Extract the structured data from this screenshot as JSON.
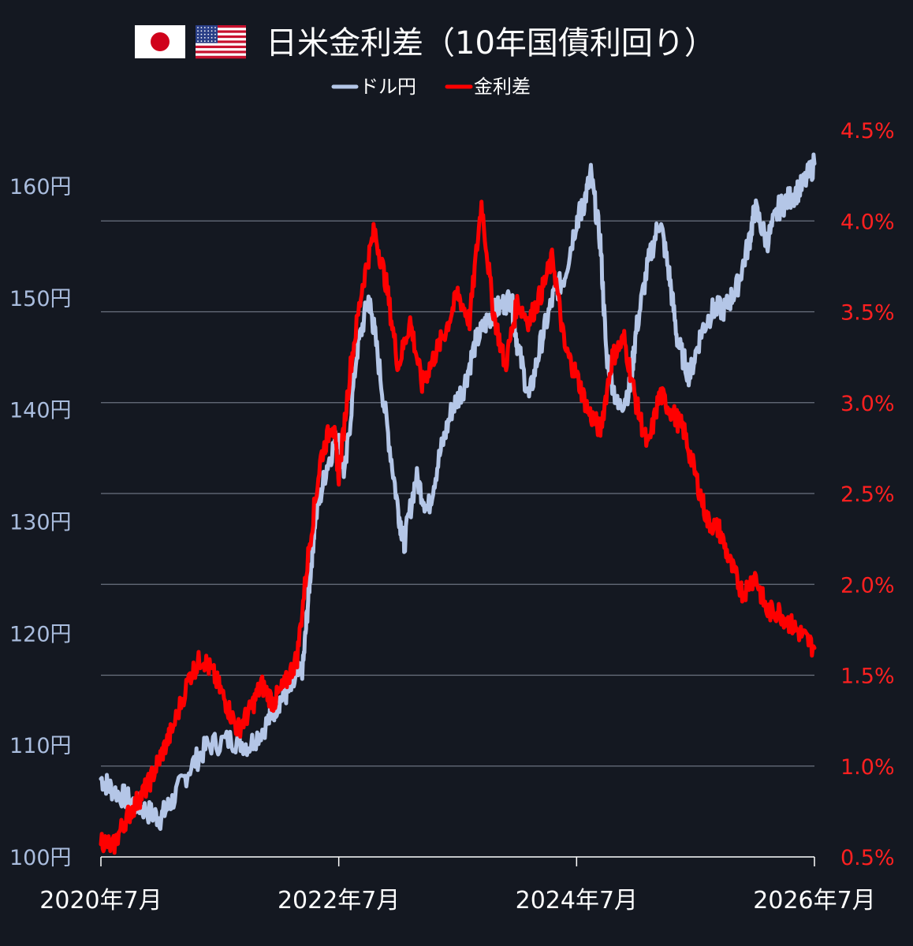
{
  "chart_data": {
    "type": "line",
    "title": "日米金利差（10年国債利回り）",
    "flags": [
      "japan-flag-icon",
      "usa-flag-icon"
    ],
    "legend_position": "top-center",
    "x_ticks": [
      "2020年7月",
      "2022年7月",
      "2024年7月",
      "2026年7月"
    ],
    "x_range": [
      "2020-07",
      "2026-07"
    ],
    "y_left": {
      "ticks": [
        "100円",
        "110円",
        "120円",
        "130円",
        "140円",
        "150円",
        "160円"
      ],
      "range": [
        100,
        165
      ],
      "color": "#a9bcdd"
    },
    "y_right": {
      "ticks": [
        "0.5%",
        "1.0%",
        "1.5%",
        "2.0%",
        "2.5%",
        "3.0%",
        "3.5%",
        "4.0%",
        "4.5%"
      ],
      "range": [
        0.5,
        4.5
      ],
      "color": "#ff0000"
    },
    "grid": true,
    "series": [
      {
        "name": "ドル円",
        "axis": "left",
        "color": "#b4c6e7",
        "x": [
          2020.5,
          2020.6,
          2020.75,
          2020.9,
          2021.0,
          2021.1,
          2021.25,
          2021.4,
          2021.6,
          2021.75,
          2021.9,
          2022.0,
          2022.1,
          2022.2,
          2022.25,
          2022.3,
          2022.4,
          2022.5,
          2022.55,
          2022.65,
          2022.75,
          2022.8,
          2022.9,
          2023.0,
          2023.05,
          2023.15,
          2023.25,
          2023.35,
          2023.45,
          2023.55,
          2023.65,
          2023.75,
          2023.83,
          2023.95,
          2024.0,
          2024.1,
          2024.2,
          2024.3,
          2024.4,
          2024.5,
          2024.55,
          2024.62,
          2024.7,
          2024.75,
          2024.85,
          2024.95,
          2025.0,
          2025.1,
          2025.2,
          2025.28,
          2025.35,
          2025.45,
          2025.55,
          2025.65,
          2025.75,
          2025.85,
          2025.95,
          2026.0,
          2026.1,
          2026.2,
          2026.3,
          2026.4,
          2026.5
        ],
        "y": [
          107,
          106,
          105,
          104,
          103.5,
          105,
          108,
          110,
          110.5,
          110,
          112,
          114,
          115,
          117,
          124,
          130,
          135,
          138,
          134,
          145,
          150,
          147,
          139,
          131,
          128,
          134,
          131,
          136,
          140,
          142,
          146,
          148,
          149,
          150,
          146,
          141,
          146,
          150,
          152,
          157,
          158,
          161,
          155,
          145,
          140,
          142,
          147,
          153,
          157,
          152,
          146,
          143,
          147,
          149,
          149,
          151,
          155,
          158,
          155,
          158,
          159,
          160,
          162
        ]
      },
      {
        "name": "金利差",
        "axis": "right",
        "color": "#ff0000",
        "x": [
          2020.5,
          2020.6,
          2020.7,
          2020.8,
          2020.9,
          2021.0,
          2021.1,
          2021.25,
          2021.35,
          2021.45,
          2021.55,
          2021.65,
          2021.75,
          2021.85,
          2021.95,
          2022.05,
          2022.15,
          2022.25,
          2022.35,
          2022.45,
          2022.5,
          2022.6,
          2022.7,
          2022.8,
          2022.9,
          2023.0,
          2023.1,
          2023.2,
          2023.3,
          2023.4,
          2023.5,
          2023.6,
          2023.7,
          2023.8,
          2023.9,
          2024.0,
          2024.1,
          2024.2,
          2024.3,
          2024.4,
          2024.5,
          2024.6,
          2024.7,
          2024.8,
          2024.9,
          2025.0,
          2025.1,
          2025.2,
          2025.3,
          2025.4,
          2025.5,
          2025.6,
          2025.7,
          2025.8,
          2025.9,
          2026.0,
          2026.1,
          2026.2,
          2026.3,
          2026.4,
          2026.5
        ],
        "y": [
          0.6,
          0.55,
          0.7,
          0.8,
          0.9,
          1.05,
          1.2,
          1.5,
          1.6,
          1.5,
          1.35,
          1.2,
          1.3,
          1.45,
          1.35,
          1.45,
          1.6,
          2.2,
          2.7,
          2.9,
          2.6,
          3.2,
          3.65,
          3.95,
          3.65,
          3.2,
          3.45,
          3.1,
          3.25,
          3.4,
          3.6,
          3.45,
          4.1,
          3.5,
          3.2,
          3.55,
          3.45,
          3.6,
          3.8,
          3.3,
          3.15,
          2.95,
          2.85,
          3.25,
          3.35,
          3.0,
          2.75,
          3.05,
          2.95,
          2.85,
          2.6,
          2.35,
          2.3,
          2.1,
          1.95,
          2.05,
          1.85,
          1.85,
          1.78,
          1.72,
          1.65
        ]
      }
    ]
  }
}
